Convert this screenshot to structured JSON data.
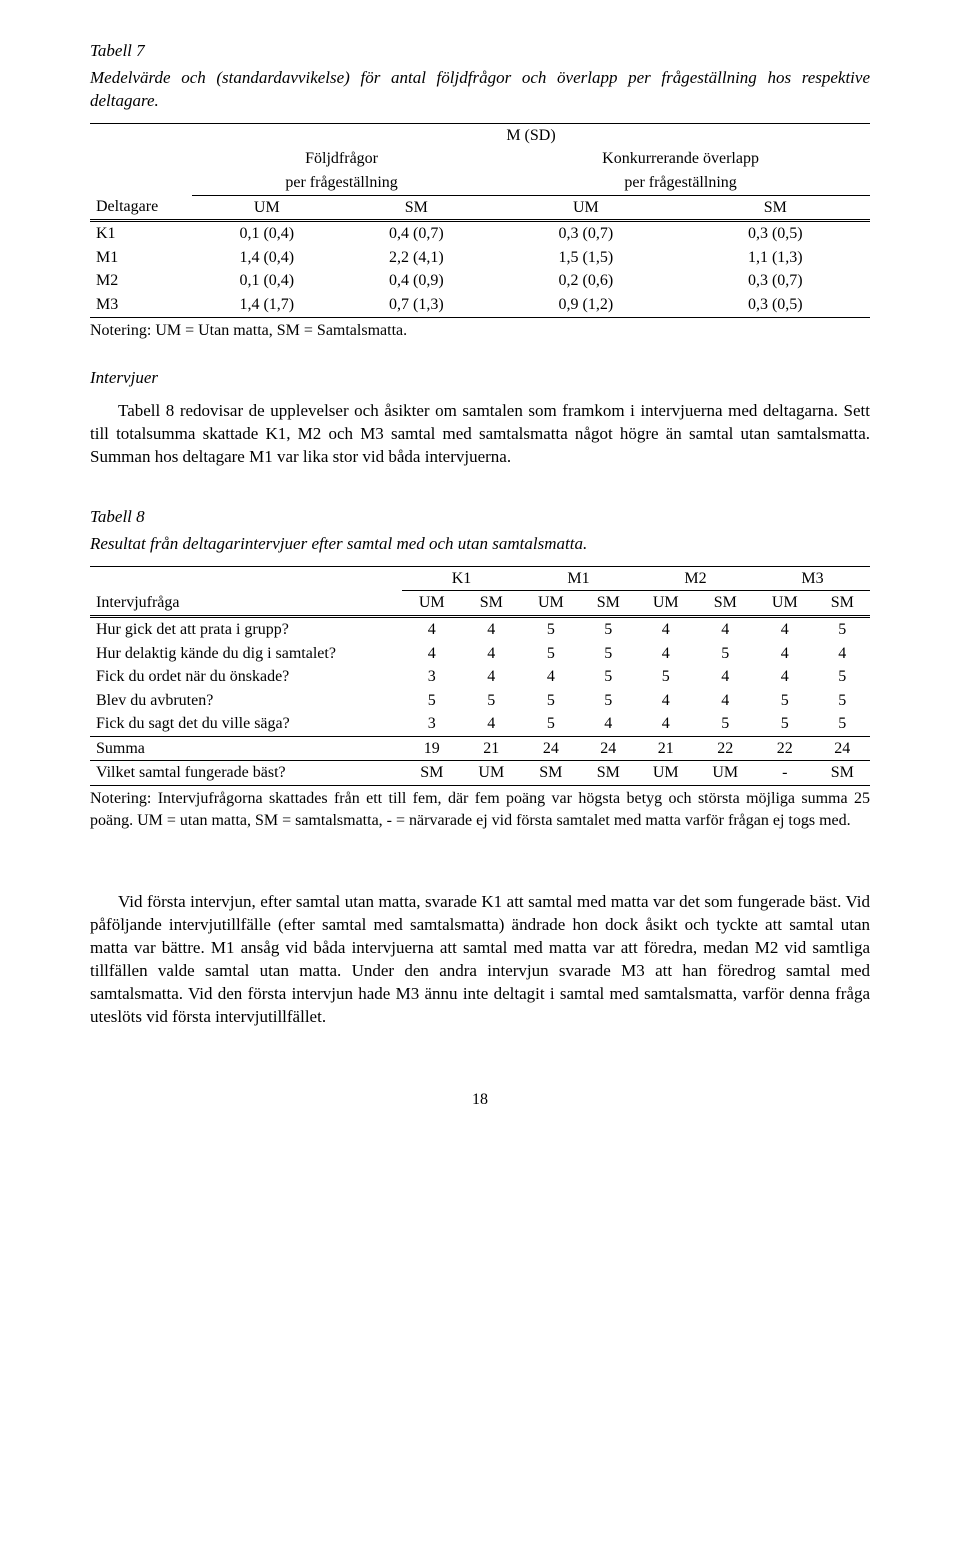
{
  "table7": {
    "title": "Tabell 7",
    "caption": "Medelvärde och (standardavvikelse) för antal följdfrågor och överlapp per frågeställning hos respektive deltagare.",
    "head_center": "M (SD)",
    "head_left": "Följdfrågor",
    "head_left2": "per frågeställning",
    "head_right": "Konkurrerande överlapp",
    "head_right2": "per frågeställning",
    "col_deltagare": "Deltagare",
    "col_um": "UM",
    "col_sm": "SM",
    "rows": [
      {
        "label": "K1",
        "a": "0,1 (0,4)",
        "b": "0,4 (0,7)",
        "c": "0,3 (0,7)",
        "d": "0,3 (0,5)"
      },
      {
        "label": "M1",
        "a": "1,4 (0,4)",
        "b": "2,2 (4,1)",
        "c": "1,5 (1,5)",
        "d": "1,1 (1,3)"
      },
      {
        "label": "M2",
        "a": "0,1 (0,4)",
        "b": "0,4 (0,9)",
        "c": "0,2 (0,6)",
        "d": "0,3 (0,7)"
      },
      {
        "label": "M3",
        "a": "1,4 (1,7)",
        "b": "0,7 (1,3)",
        "c": "0,9 (1,2)",
        "d": "0,3 (0,5)"
      }
    ],
    "note": "Notering: UM = Utan matta, SM = Samtalsmatta."
  },
  "section_intervjuer": "Intervjuer",
  "para1": "Tabell 8 redovisar de upplevelser och åsikter om samtalen som framkom i intervjuerna med deltagarna. Sett till totalsumma skattade K1, M2 och M3 samtal med samtalsmatta något högre än samtal utan samtalsmatta. Summan hos deltagare M1 var lika stor vid båda intervjuerna.",
  "table8": {
    "title": "Tabell 8",
    "caption": "Resultat från deltagarintervjuer efter samtal med och utan samtalsmatta.",
    "col_q": "Intervjufråga",
    "participants": [
      "K1",
      "M1",
      "M2",
      "M3"
    ],
    "sub": [
      "UM",
      "SM"
    ],
    "rows": [
      {
        "q": "Hur gick det att prata i grupp?",
        "v": [
          "4",
          "4",
          "5",
          "5",
          "4",
          "4",
          "4",
          "5"
        ]
      },
      {
        "q": "Hur delaktig kände du dig i samtalet?",
        "v": [
          "4",
          "4",
          "5",
          "5",
          "4",
          "5",
          "4",
          "4"
        ]
      },
      {
        "q": "Fick du ordet när du önskade?",
        "v": [
          "3",
          "4",
          "4",
          "5",
          "5",
          "4",
          "4",
          "5"
        ]
      },
      {
        "q": "Blev du avbruten?",
        "v": [
          "5",
          "5",
          "5",
          "5",
          "4",
          "4",
          "5",
          "5"
        ]
      },
      {
        "q": "Fick du sagt det du ville säga?",
        "v": [
          "3",
          "4",
          "5",
          "4",
          "4",
          "5",
          "5",
          "5"
        ]
      }
    ],
    "sum_label": "Summa",
    "sum": [
      "19",
      "21",
      "24",
      "24",
      "21",
      "22",
      "22",
      "24"
    ],
    "best_label": "Vilket samtal fungerade bäst?",
    "best": [
      "SM",
      "UM",
      "SM",
      "SM",
      "UM",
      "UM",
      "-",
      "SM"
    ],
    "note": "Notering: Intervjufrågorna skattades från ett till fem, där fem poäng var högsta betyg och största möjliga summa 25 poäng. UM = utan matta, SM = samtalsmatta, - = närvarade ej vid första samtalet med matta varför frågan ej togs med."
  },
  "para2": "Vid första intervjun, efter samtal utan matta, svarade K1 att samtal med matta var det som fungerade bäst. Vid påföljande intervjutillfälle (efter samtal med samtalsmatta) ändrade hon dock åsikt och tyckte att samtal utan matta var bättre. M1 ansåg vid båda intervjuerna att samtal med matta var att föredra, medan M2 vid samtliga tillfällen valde samtal utan matta. Under den andra intervjun svarade M3 att han föredrog samtal med samtalsmatta. Vid den första intervjun hade M3 ännu inte deltagit i samtal med samtalsmatta, varför denna fråga uteslöts vid första intervjutillfället.",
  "pagenum": "18"
}
